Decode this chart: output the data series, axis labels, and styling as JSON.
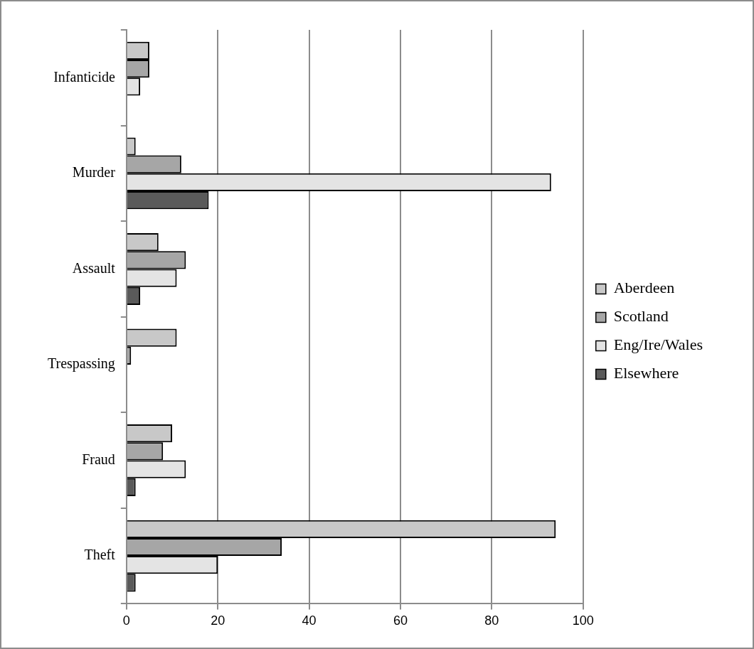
{
  "chart_data": {
    "type": "bar",
    "orientation": "horizontal",
    "categories": [
      "Infanticide",
      "Murder",
      "Assault",
      "Trespassing",
      "Fraud",
      "Theft"
    ],
    "series": [
      {
        "name": "Aberdeen",
        "color": "#c8c8c8",
        "values": [
          5,
          2,
          7,
          11,
          10,
          94
        ]
      },
      {
        "name": "Scotland",
        "color": "#a6a6a6",
        "values": [
          5,
          12,
          13,
          1,
          8,
          34
        ]
      },
      {
        "name": "Eng/Ire/Wales",
        "color": "#e4e4e4",
        "values": [
          3,
          93,
          11,
          null,
          13,
          20
        ]
      },
      {
        "name": "Elsewhere",
        "color": "#5a5a5a",
        "values": [
          null,
          18,
          3,
          null,
          2,
          2
        ]
      }
    ],
    "xlim": [
      0,
      100
    ],
    "xticks": [
      0,
      20,
      40,
      60,
      80,
      100
    ],
    "grid": "x",
    "legend": "right"
  }
}
